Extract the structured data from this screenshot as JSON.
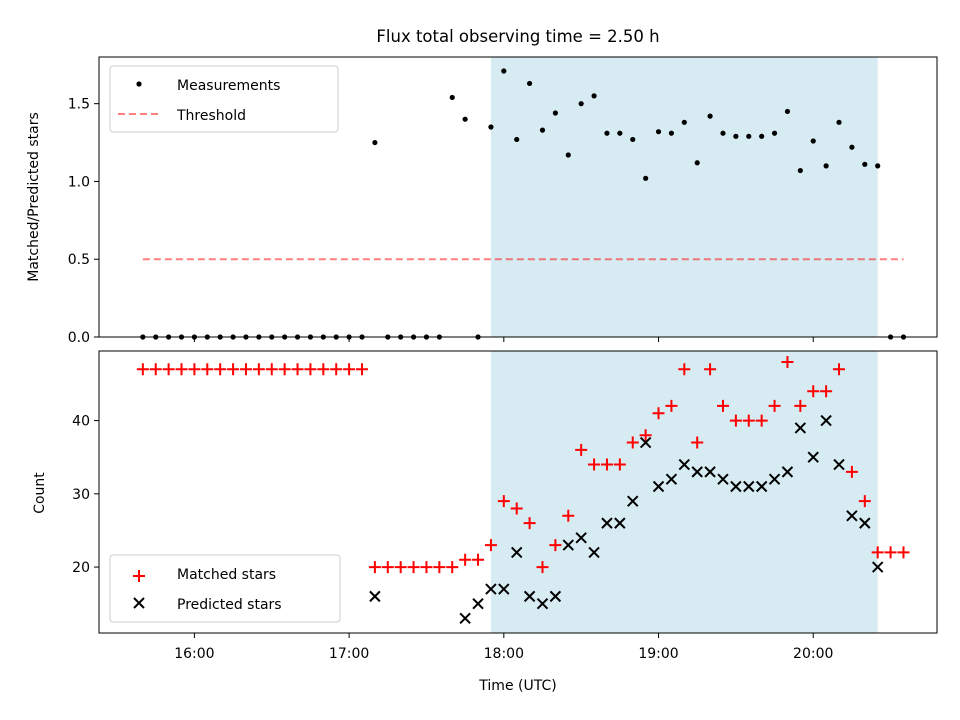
{
  "title": "Flux total observing time = 2.50 h",
  "xlabel": "Time (UTC)",
  "colors": {
    "band": "#add8e6",
    "threshold": "#ff0000",
    "matched": "#ff0000",
    "predicted": "#000000",
    "measure": "#000000"
  },
  "chart_data": [
    {
      "type": "scatter",
      "ylabel": "Matched/Predicted stars",
      "ylim": [
        0,
        1.8
      ],
      "xlim": [
        "15:23",
        "20:48"
      ],
      "y_ticks": [
        0.0,
        0.5,
        1.0,
        1.5
      ],
      "y_tick_labels": [
        "0.0",
        "0.5",
        "1.0",
        "1.5"
      ],
      "x_ticks": [
        "16:00",
        "17:00",
        "18:00",
        "19:00",
        "20:00"
      ],
      "shaded_interval": [
        "17:55",
        "20:25"
      ],
      "legend_position": "top-left",
      "threshold": {
        "name": "Threshold",
        "value": 0.5,
        "x_range": [
          "15:40",
          "20:35"
        ]
      },
      "series": [
        {
          "name": "Measurements",
          "x": [
            "15:40",
            "15:45",
            "15:50",
            "15:55",
            "16:00",
            "16:05",
            "16:10",
            "16:15",
            "16:20",
            "16:25",
            "16:30",
            "16:35",
            "16:40",
            "16:45",
            "16:50",
            "16:55",
            "17:00",
            "17:05",
            "17:10",
            "17:15",
            "17:20",
            "17:25",
            "17:30",
            "17:35",
            "17:40",
            "17:45",
            "17:50",
            "17:55",
            "18:00",
            "18:05",
            "18:10",
            "18:15",
            "18:20",
            "18:25",
            "18:30",
            "18:35",
            "18:40",
            "18:45",
            "18:50",
            "18:55",
            "19:00",
            "19:05",
            "19:10",
            "19:15",
            "19:20",
            "19:25",
            "19:30",
            "19:35",
            "19:40",
            "19:45",
            "19:50",
            "19:55",
            "20:00",
            "20:05",
            "20:10",
            "20:15",
            "20:20",
            "20:25",
            "20:30",
            "20:35"
          ],
          "y": [
            0,
            0,
            0,
            0,
            0,
            0,
            0,
            0,
            0,
            0,
            0,
            0,
            0,
            0,
            0,
            0,
            0,
            0,
            1.25,
            0,
            0,
            0,
            0,
            0,
            1.54,
            1.4,
            0,
            1.35,
            1.71,
            1.27,
            1.63,
            1.33,
            1.44,
            1.17,
            1.5,
            1.55,
            1.31,
            1.31,
            1.27,
            1.02,
            1.32,
            1.31,
            1.38,
            1.12,
            1.42,
            1.31,
            1.29,
            1.29,
            1.29,
            1.31,
            1.45,
            1.07,
            1.26,
            1.1,
            1.38,
            1.22,
            1.11,
            1.1,
            0,
            0
          ]
        }
      ]
    },
    {
      "type": "scatter",
      "ylabel": "Count",
      "ylim": [
        11,
        49.5
      ],
      "xlim": [
        "15:23",
        "20:48"
      ],
      "y_ticks": [
        20,
        30,
        40
      ],
      "y_tick_labels": [
        "20",
        "30",
        "40"
      ],
      "x_ticks": [
        "16:00",
        "17:00",
        "18:00",
        "19:00",
        "20:00"
      ],
      "x_tick_labels": [
        "16:00",
        "17:00",
        "18:00",
        "19:00",
        "20:00"
      ],
      "shaded_interval": [
        "17:55",
        "20:25"
      ],
      "legend_position": "bottom-left",
      "series": [
        {
          "name": "Matched stars",
          "x": [
            "15:40",
            "15:45",
            "15:50",
            "15:55",
            "16:00",
            "16:05",
            "16:10",
            "16:15",
            "16:20",
            "16:25",
            "16:30",
            "16:35",
            "16:40",
            "16:45",
            "16:50",
            "16:55",
            "17:00",
            "17:05",
            "17:10",
            "17:15",
            "17:20",
            "17:25",
            "17:30",
            "17:35",
            "17:40",
            "17:45",
            "17:50",
            "17:55",
            "18:00",
            "18:05",
            "18:10",
            "18:15",
            "18:20",
            "18:25",
            "18:30",
            "18:35",
            "18:40",
            "18:45",
            "18:50",
            "18:55",
            "19:00",
            "19:05",
            "19:10",
            "19:15",
            "19:20",
            "19:25",
            "19:30",
            "19:35",
            "19:40",
            "19:45",
            "19:50",
            "19:55",
            "20:00",
            "20:05",
            "20:10",
            "20:15",
            "20:20",
            "20:25",
            "20:30",
            "20:35"
          ],
          "y": [
            47,
            47,
            47,
            47,
            47,
            47,
            47,
            47,
            47,
            47,
            47,
            47,
            47,
            47,
            47,
            47,
            47,
            47,
            20,
            20,
            20,
            20,
            20,
            20,
            20,
            21,
            21,
            23,
            29,
            28,
            26,
            20,
            23,
            27,
            36,
            34,
            34,
            34,
            37,
            38,
            41,
            42,
            47,
            37,
            47,
            42,
            40,
            40,
            40,
            42,
            48,
            42,
            44,
            44,
            47,
            33,
            29,
            22,
            22,
            22
          ]
        },
        {
          "name": "Predicted stars",
          "x": [
            "17:10",
            "17:45",
            "17:50",
            "17:55",
            "18:00",
            "18:05",
            "18:10",
            "18:15",
            "18:20",
            "18:25",
            "18:30",
            "18:35",
            "18:40",
            "18:45",
            "18:50",
            "18:55",
            "19:00",
            "19:05",
            "19:10",
            "19:15",
            "19:20",
            "19:25",
            "19:30",
            "19:35",
            "19:40",
            "19:45",
            "19:50",
            "19:55",
            "20:00",
            "20:05",
            "20:10",
            "20:15",
            "20:20",
            "20:25"
          ],
          "y": [
            16,
            13,
            15,
            17,
            17,
            22,
            16,
            15,
            16,
            23,
            24,
            22,
            26,
            26,
            29,
            37,
            31,
            32,
            34,
            33,
            33,
            32,
            31,
            31,
            31,
            32,
            33,
            39,
            35,
            40,
            34,
            27,
            26,
            20
          ]
        }
      ]
    }
  ]
}
